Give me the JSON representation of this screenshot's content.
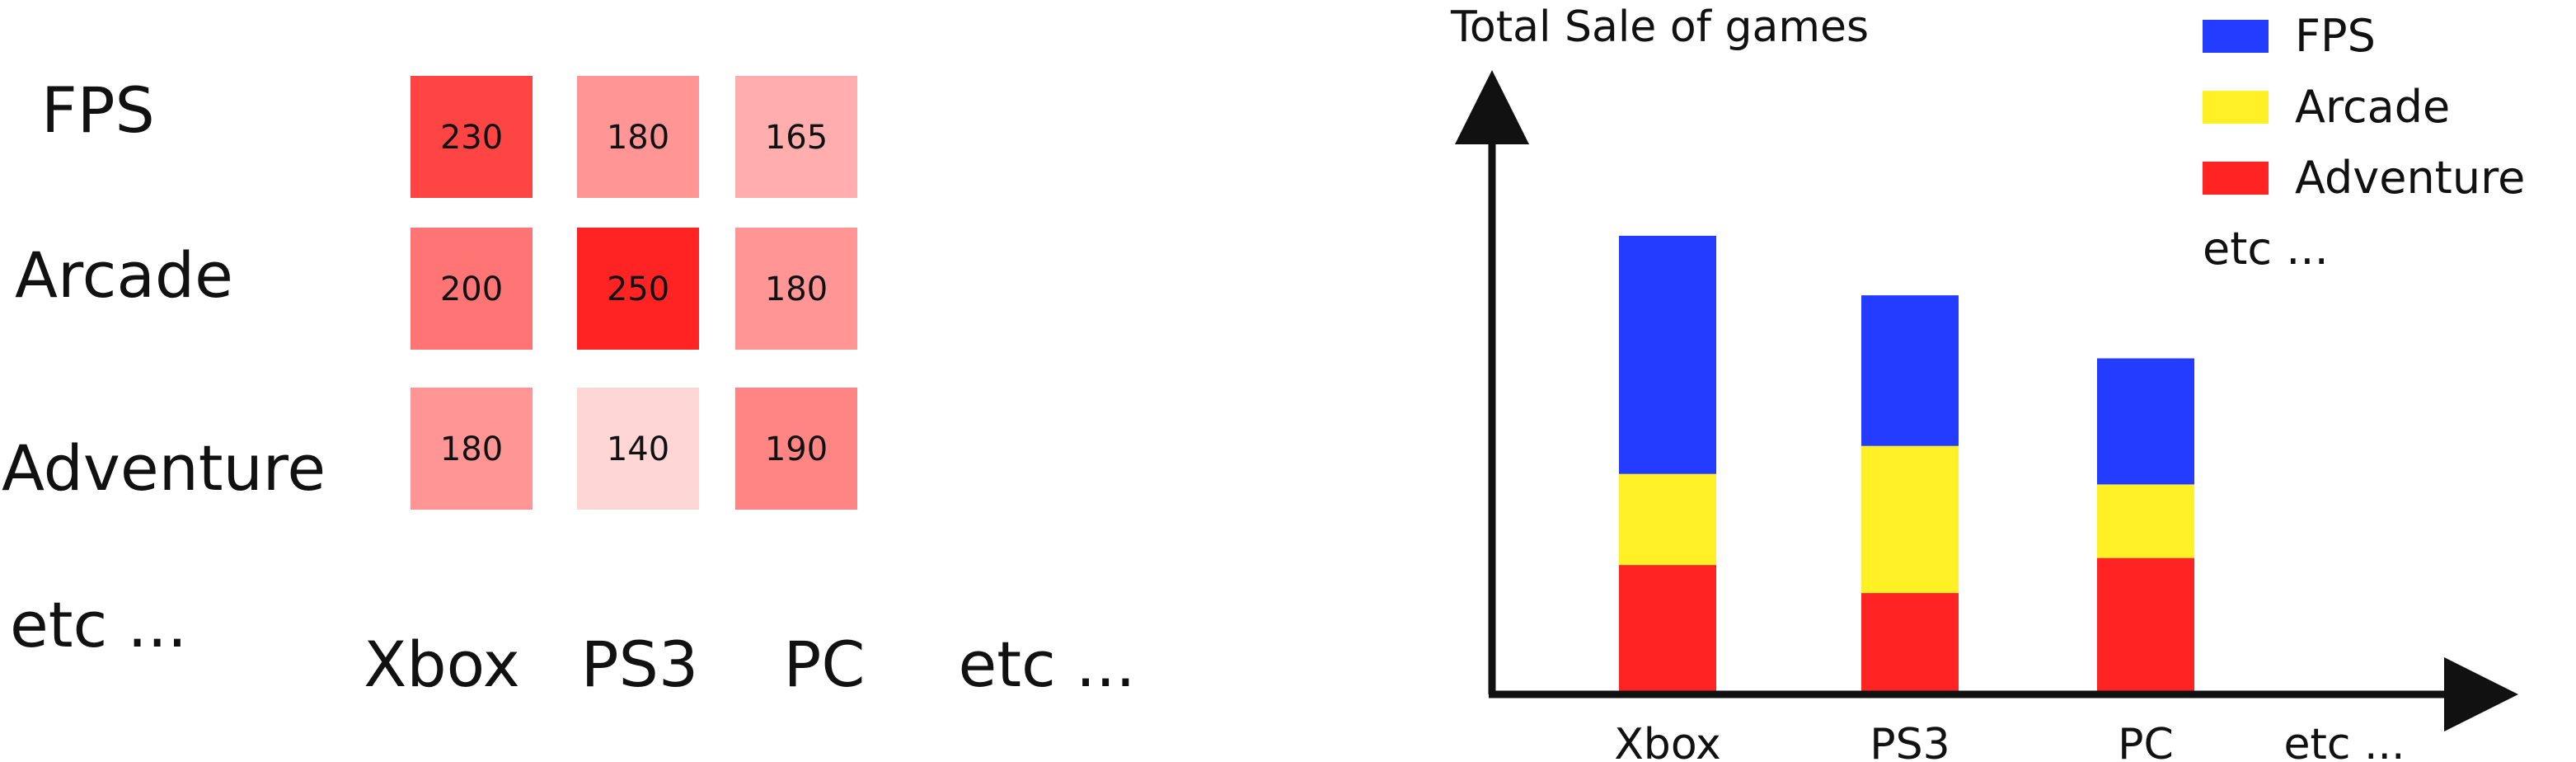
{
  "heatmap": {
    "chart_data": {
      "type": "heatmap",
      "rows": [
        "FPS",
        "Arcade",
        "Adventure"
      ],
      "columns": [
        "Xbox",
        "PS3",
        "PC"
      ],
      "values": [
        [
          230,
          180,
          165
        ],
        [
          200,
          250,
          180
        ],
        [
          180,
          140,
          190
        ]
      ],
      "row_more_label": "etc ...",
      "col_more_label": "etc ...",
      "color_scale": {
        "low": "#ffd6d6",
        "high": "#ff2323"
      }
    }
  },
  "stacked": {
    "chart_data": {
      "type": "bar",
      "stacked": true,
      "ylabel": "Total Sale of games",
      "categories": [
        "Xbox",
        "PS3",
        "PC"
      ],
      "more_label": "etc ...",
      "series": [
        {
          "name": "Adventure",
          "color": "#ff2323",
          "values": [
            180,
            140,
            190
          ]
        },
        {
          "name": "Arcade",
          "color": "#fff125",
          "values": [
            130,
            210,
            105
          ]
        },
        {
          "name": "FPS",
          "color": "#233cff",
          "values": [
            340,
            215,
            180
          ]
        }
      ],
      "legend_order": [
        "FPS",
        "Arcade",
        "Adventure"
      ],
      "legend_more_label": "etc ...",
      "legend_position": "top-right",
      "ylim": [
        0,
        810
      ],
      "grid": false
    }
  }
}
